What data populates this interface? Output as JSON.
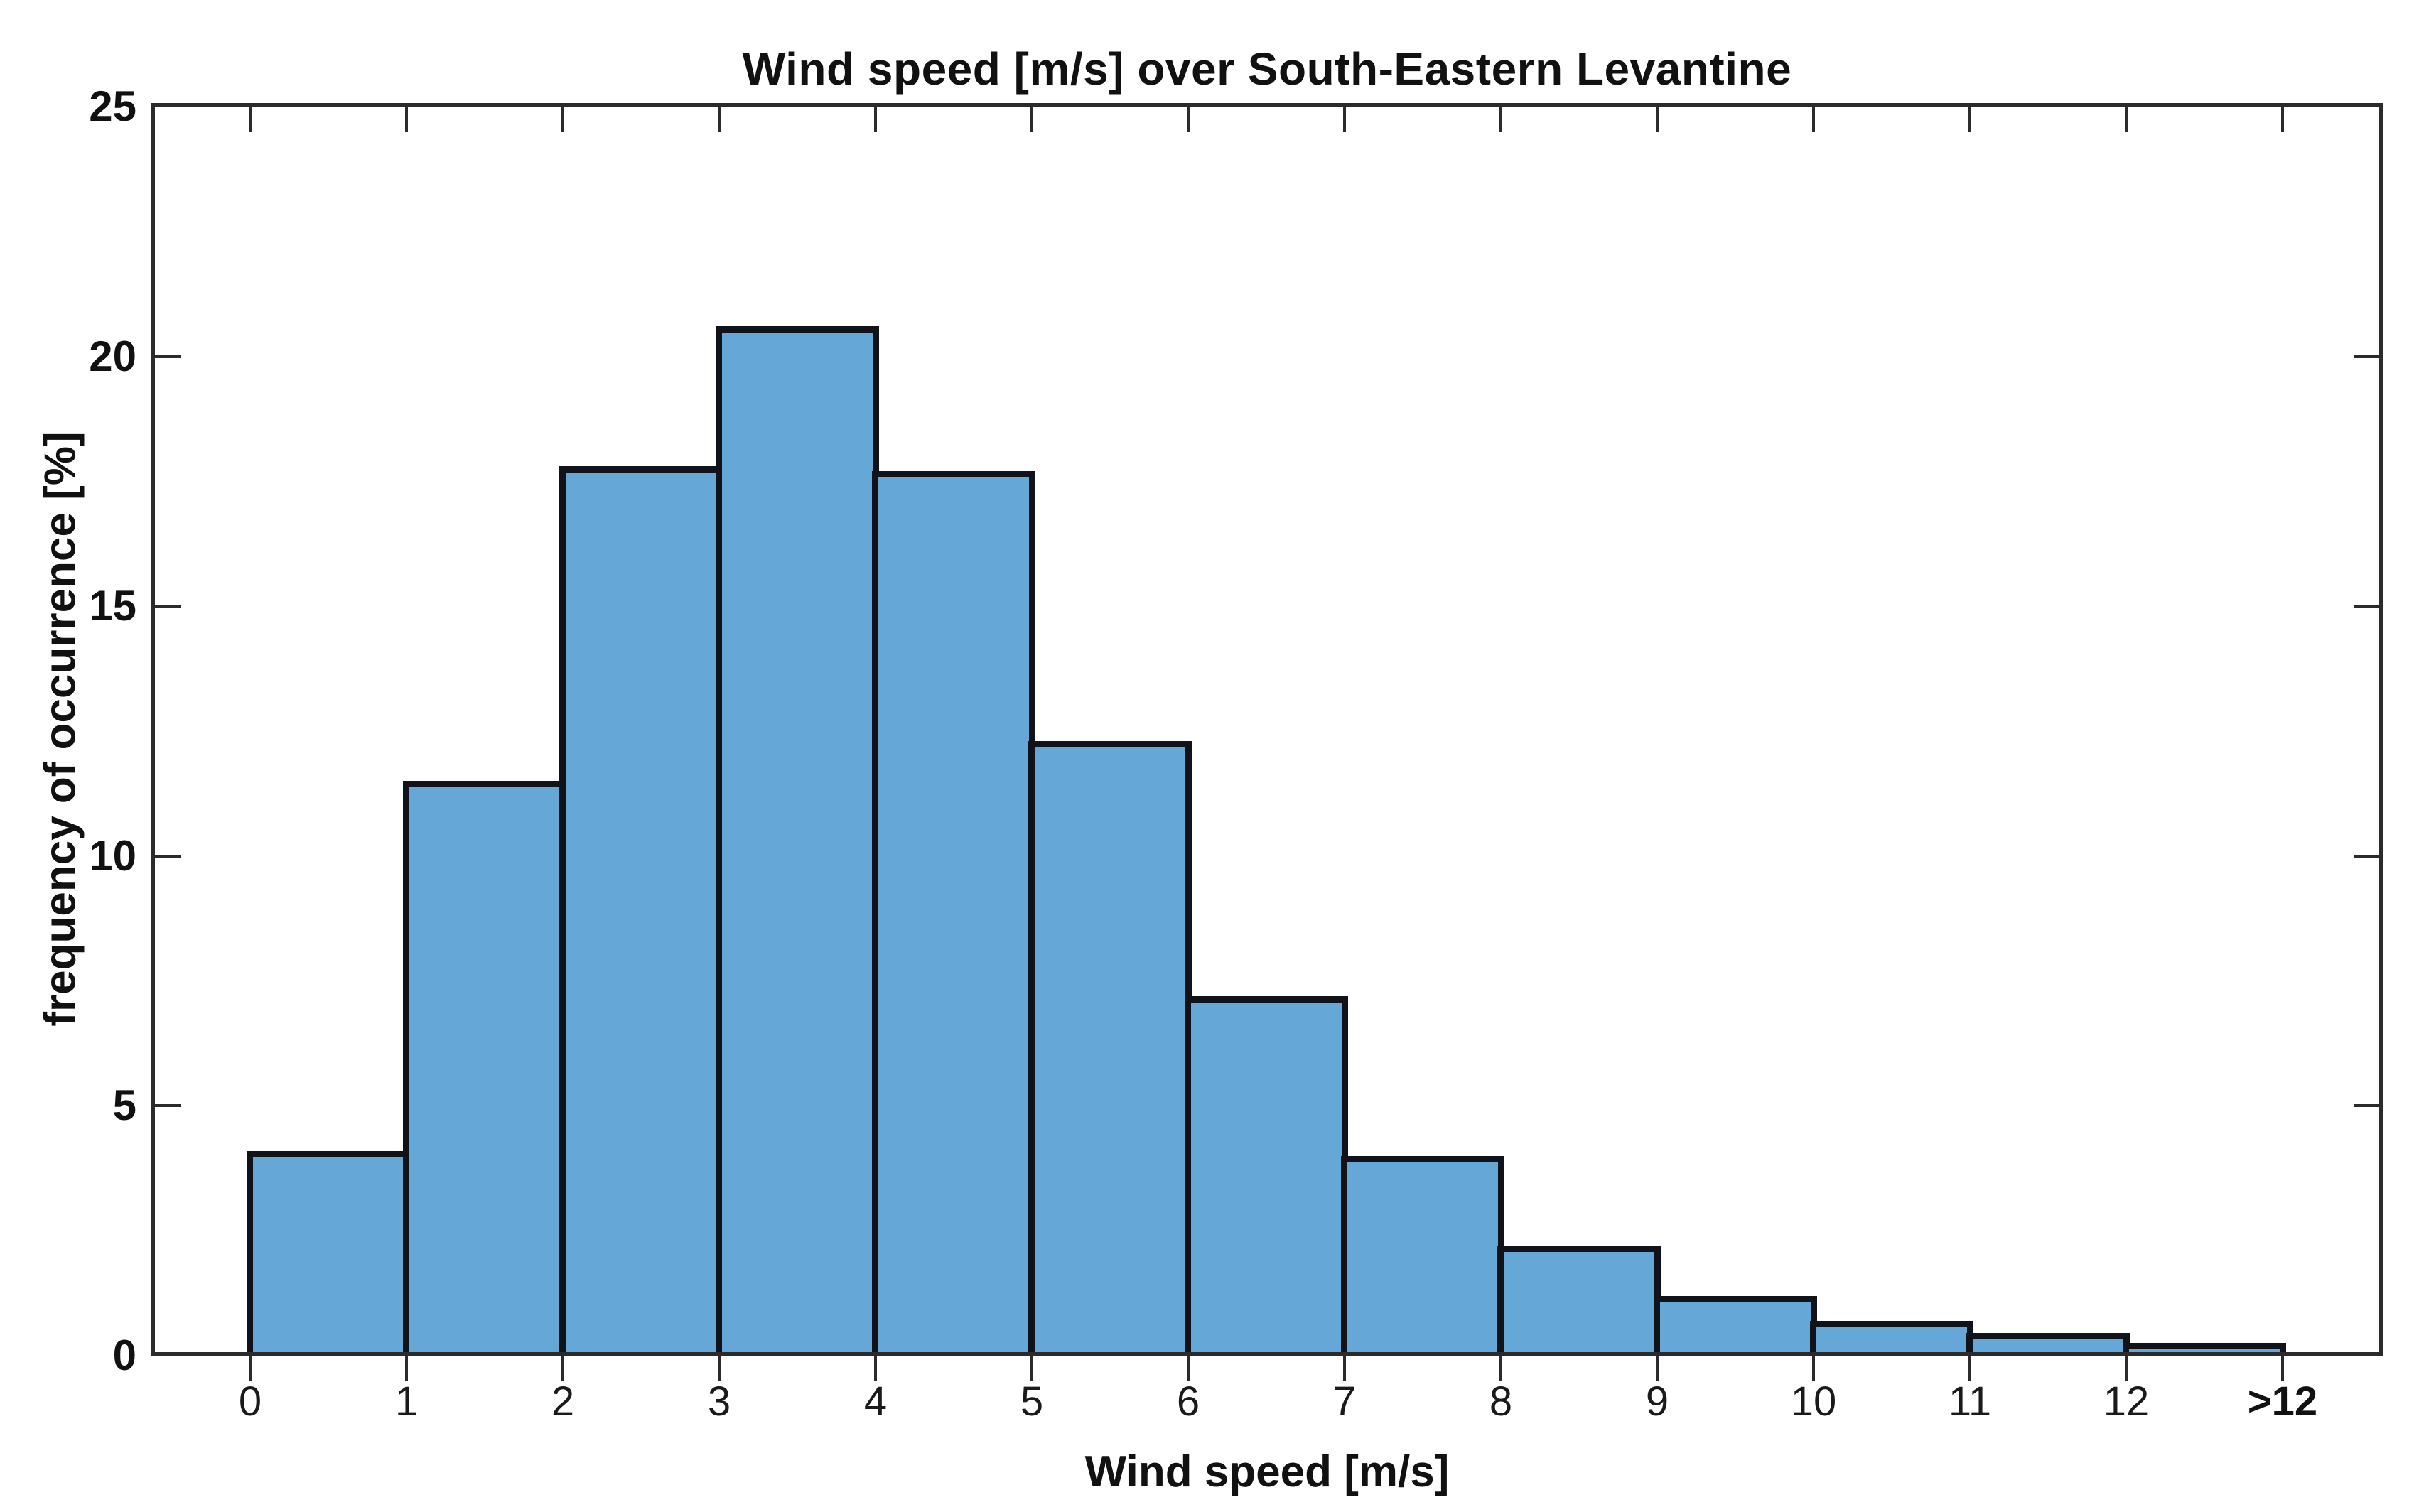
{
  "chart_data": {
    "type": "bar",
    "subtype": "histogram",
    "title": "Wind speed [m/s] over South-Eastern Levantine",
    "xlabel": "Wind speed [m/s]",
    "ylabel": "frequency of occurrence [%]",
    "categories": [
      "0-1",
      "1-2",
      "2-3",
      "3-4",
      "4-5",
      "5-6",
      "6-7",
      "7-8",
      "8-9",
      "9-10",
      "10-11",
      "11-12",
      ">12"
    ],
    "values": [
      4.1,
      11.5,
      17.8,
      20.6,
      17.7,
      12.3,
      7.2,
      4.0,
      2.2,
      1.2,
      0.7,
      0.45,
      0.25
    ],
    "x_tick_labels": [
      "0",
      "1",
      "2",
      "3",
      "4",
      "5",
      "6",
      "7",
      "8",
      "9",
      "10",
      "11",
      "12",
      ">12"
    ],
    "y_ticks": [
      0,
      5,
      10,
      15,
      20,
      25
    ],
    "ylim": [
      0,
      25
    ],
    "xlim_units": [
      -0.63,
      13.64
    ],
    "grid": "off",
    "legend": "none",
    "bar_fill_color": "#65a8d8",
    "bar_edge_color": "#10141a",
    "axis_color": "#2b2b2b",
    "background_color": "#ffffff"
  }
}
